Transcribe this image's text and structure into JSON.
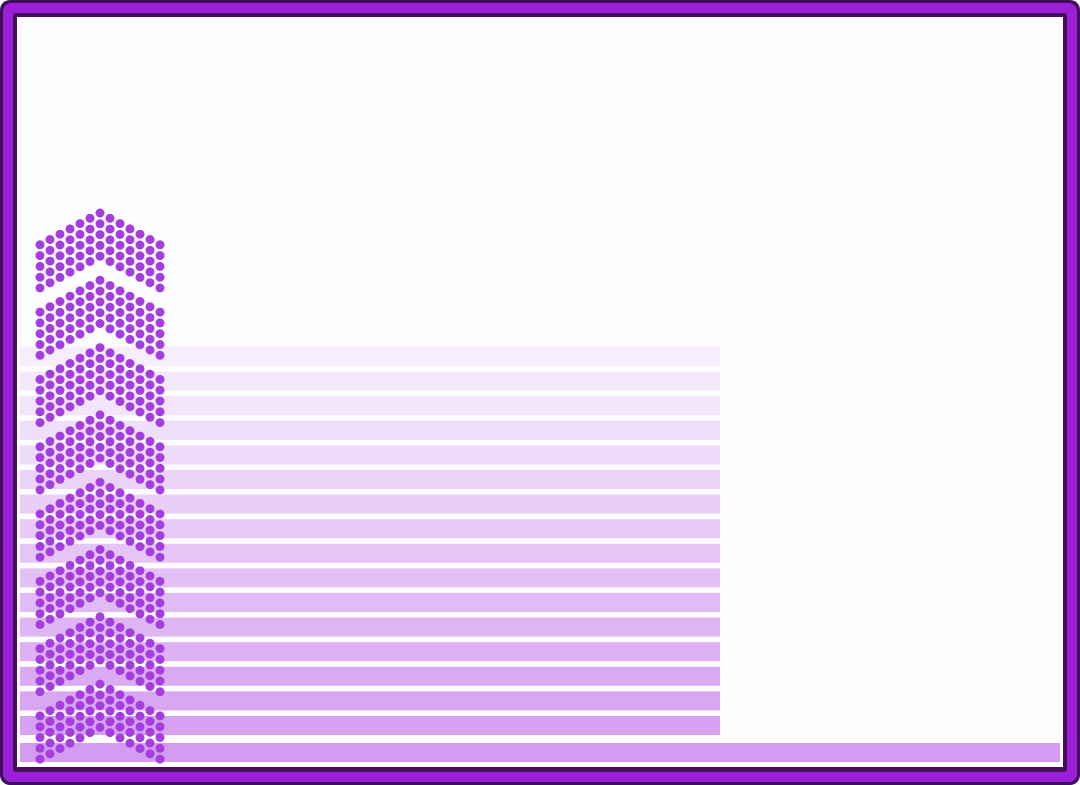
{
  "colors": {
    "frame_outer": "#3d0f5a",
    "frame_middle": "#9b1fd8",
    "frame_inner": "#44105a",
    "background": "#fdfcfe",
    "dot": "#a53ee0",
    "stripe_light": "#f6eefc",
    "stripe_dark": "#d49cf0"
  },
  "stripes": {
    "short_count": 16,
    "long_count": 1
  },
  "chevrons": {
    "count": 8,
    "columns": 13,
    "dots_per_column": 5
  }
}
